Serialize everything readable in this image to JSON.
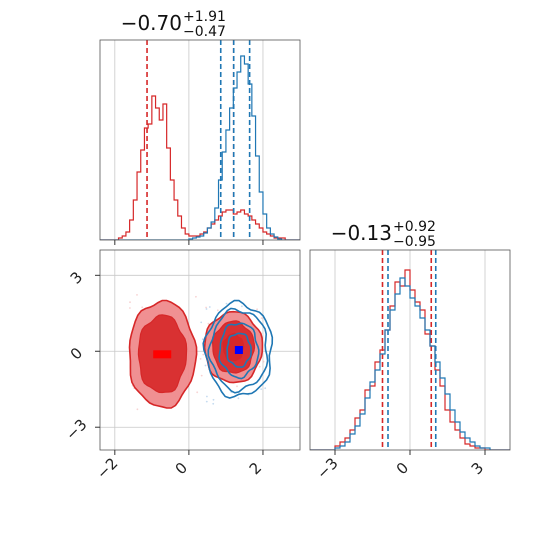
{
  "chart_data": {
    "type": "corner",
    "colors": {
      "red": "#d62728",
      "blue": "#1f77b4",
      "red_fill": "#ef8a8c",
      "red_core": "#d62728"
    },
    "panels": [
      {
        "id": "marginal-param-1",
        "type": "histogram",
        "title_value": "−0.70",
        "title_plus": "+1.91",
        "title_minus": "−0.47",
        "xlim": [
          -2.4,
          3.0
        ],
        "ylim": [
          0,
          1.0
        ],
        "grid": true,
        "x_ticks": [
          -2,
          0,
          2
        ],
        "bins": [
          -2.4,
          -2.3,
          -2.2,
          -2.1,
          -2.0,
          -1.9,
          -1.8,
          -1.7,
          -1.6,
          -1.5,
          -1.4,
          -1.3,
          -1.2,
          -1.1,
          -1.0,
          -0.9,
          -0.8,
          -0.7,
          -0.6,
          -0.5,
          -0.4,
          -0.3,
          -0.2,
          -0.1,
          0.0,
          0.1,
          0.2,
          0.3,
          0.4,
          0.5,
          0.6,
          0.7,
          0.8,
          0.9,
          1.0,
          1.1,
          1.2,
          1.3,
          1.4,
          1.5,
          1.6,
          1.7,
          1.8,
          1.9,
          2.0,
          2.1,
          2.2,
          2.3,
          2.4,
          2.5,
          2.6,
          2.7,
          2.8,
          2.9,
          3.0
        ],
        "series": [
          {
            "color": "red",
            "counts": [
              0,
              0,
              0,
              0,
              0,
              0.01,
              0.02,
              0.04,
              0.1,
              0.2,
              0.34,
              0.45,
              0.56,
              0.58,
              0.72,
              0.66,
              0.6,
              0.68,
              0.46,
              0.3,
              0.2,
              0.12,
              0.06,
              0.03,
              0.02,
              0.02,
              0.02,
              0.03,
              0.04,
              0.06,
              0.08,
              0.1,
              0.12,
              0.14,
              0.15,
              0.15,
              0.13,
              0.14,
              0.15,
              0.13,
              0.12,
              0.1,
              0.08,
              0.06,
              0.04,
              0.03,
              0.02,
              0.01,
              0.01,
              0.01,
              0,
              0,
              0,
              0
            ],
            "quantile_lines": [
              -1.13,
              1.21
            ]
          },
          {
            "color": "blue",
            "counts": [
              0,
              0,
              0,
              0,
              0,
              0,
              0,
              0,
              0,
              0,
              0,
              0,
              0,
              0,
              0,
              0,
              0,
              0,
              0,
              0,
              0,
              0,
              0,
              0,
              0.005,
              0.01,
              0.015,
              0.02,
              0.035,
              0.06,
              0.09,
              0.16,
              0.3,
              0.44,
              0.55,
              0.66,
              0.76,
              0.84,
              0.92,
              0.88,
              0.78,
              0.62,
              0.42,
              0.24,
              0.13,
              0.06,
              0.03,
              0.015,
              0.005,
              0,
              0,
              0,
              0,
              0
            ],
            "quantile_lines": [
              0.86,
              1.21,
              1.64
            ]
          }
        ]
      },
      {
        "id": "joint-param-1-param-2",
        "type": "contour",
        "xlim": [
          -2.4,
          3.0
        ],
        "ylim": [
          -3.9,
          4.0
        ],
        "grid": true,
        "x_ticks": [
          -2,
          0,
          2
        ],
        "y_ticks": [
          -3,
          0,
          3
        ],
        "x_tick_labels": [
          "−2",
          "0",
          "2"
        ],
        "y_tick_labels": [
          "−3",
          "0",
          "3"
        ],
        "modes": [
          {
            "color": "red",
            "center": [
              -0.72,
              -0.12
            ],
            "spread": [
              0.9,
              2.1
            ]
          },
          {
            "color": "red",
            "center": [
              1.2,
              0.15
            ],
            "spread": [
              0.78,
              1.4
            ]
          },
          {
            "color": "blue",
            "center": [
              1.35,
              0.05
            ],
            "spread": [
              0.9,
              1.85
            ]
          }
        ],
        "markers": [
          {
            "color": "red",
            "point": [
              -0.72,
              -0.12
            ]
          },
          {
            "color": "blue",
            "point": [
              1.35,
              0.05
            ]
          }
        ]
      },
      {
        "id": "marginal-param-2",
        "type": "histogram",
        "title_value": "−0.13",
        "title_plus": "+0.92",
        "title_minus": "−0.95",
        "xlim": [
          -4.0,
          4.0
        ],
        "ylim": [
          0,
          1.0
        ],
        "grid": true,
        "x_ticks": [
          -3,
          0,
          3
        ],
        "x_tick_labels": [
          "−3",
          "0",
          "3"
        ],
        "bins": [
          -4.0,
          -3.8,
          -3.6,
          -3.4,
          -3.2,
          -3.0,
          -2.8,
          -2.6,
          -2.4,
          -2.2,
          -2.0,
          -1.8,
          -1.6,
          -1.4,
          -1.2,
          -1.0,
          -0.8,
          -0.6,
          -0.4,
          -0.2,
          0.0,
          0.2,
          0.4,
          0.6,
          0.8,
          1.0,
          1.2,
          1.4,
          1.6,
          1.8,
          2.0,
          2.2,
          2.4,
          2.6,
          2.8,
          3.0,
          3.2,
          3.4,
          3.6,
          3.8,
          4.0
        ],
        "series": [
          {
            "color": "red",
            "counts": [
              0,
              0,
              0,
              0,
              0,
              0.02,
              0.04,
              0.06,
              0.1,
              0.16,
              0.2,
              0.3,
              0.32,
              0.44,
              0.5,
              0.6,
              0.72,
              0.84,
              0.82,
              0.9,
              0.8,
              0.74,
              0.7,
              0.58,
              0.52,
              0.4,
              0.32,
              0.2,
              0.14,
              0.1,
              0.06,
              0.03,
              0.02,
              0.01,
              0.01,
              0,
              0,
              0,
              0,
              0
            ],
            "quantile_lines": [
              -1.1,
              0.85
            ]
          },
          {
            "color": "blue",
            "counts": [
              0,
              0,
              0,
              0,
              0,
              0.01,
              0.02,
              0.04,
              0.08,
              0.12,
              0.18,
              0.26,
              0.34,
              0.4,
              0.48,
              0.6,
              0.7,
              0.78,
              0.86,
              0.82,
              0.76,
              0.72,
              0.66,
              0.6,
              0.52,
              0.44,
              0.36,
              0.28,
              0.2,
              0.14,
              0.09,
              0.06,
              0.04,
              0.02,
              0.01,
              0.01,
              0,
              0,
              0,
              0
            ],
            "quantile_lines": [
              -0.88,
              1.03
            ]
          }
        ]
      }
    ]
  }
}
